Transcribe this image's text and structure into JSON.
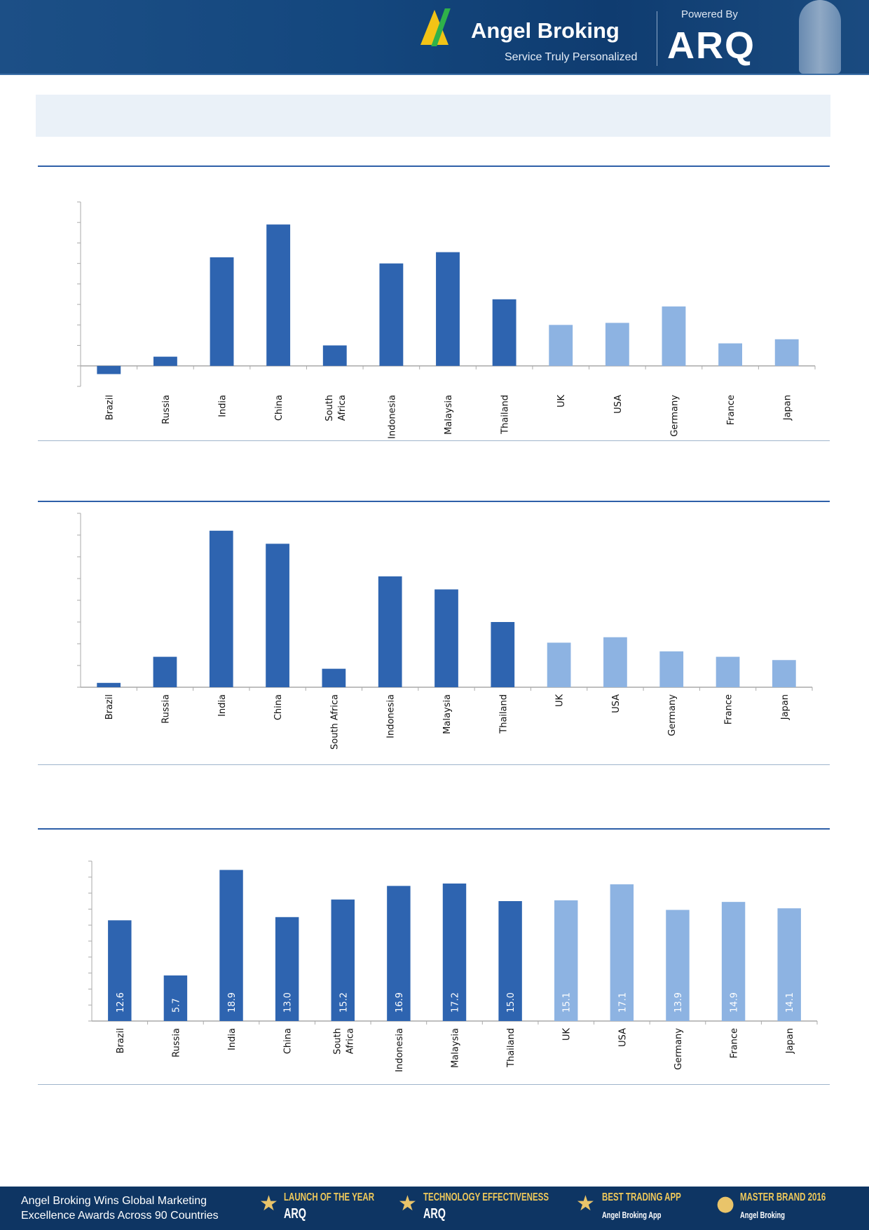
{
  "header": {
    "brand": "Angel Broking",
    "tagline": "Service Truly Personalized",
    "powered_by": "Powered By",
    "product": "ARQ"
  },
  "footer": {
    "text": "Angel Broking Wins Global Marketing\nExcellence Awards Across 90 Countries",
    "awards": [
      {
        "title": "LAUNCH OF THE YEAR",
        "sub": "ARQ"
      },
      {
        "title": "TECHNOLOGY EFFECTIVENESS",
        "sub": "ARQ"
      },
      {
        "title": "BEST TRADING APP",
        "sub": "Angel Broking App"
      },
      {
        "title": "MASTER BRAND 2016",
        "sub": "Angel Broking"
      }
    ]
  },
  "colors": {
    "em": "#2e64b0",
    "dm": "#8db3e2",
    "header_bg": "#14477e",
    "rule": "#2e5fa8"
  },
  "chart_data": [
    {
      "type": "bar",
      "categories": [
        "Brazil",
        "Russia",
        "India",
        "China",
        "South Africa",
        "Indonesia",
        "Malaysia",
        "Thailand",
        "UK",
        "USA",
        "Germany",
        "France",
        "Japan"
      ],
      "values": [
        -0.4,
        0.45,
        5.3,
        6.9,
        1.0,
        5.0,
        5.55,
        3.25,
        2.0,
        2.1,
        2.9,
        1.1,
        1.3
      ],
      "bar_colors": [
        "#2e64b0",
        "#2e64b0",
        "#2e64b0",
        "#2e64b0",
        "#2e64b0",
        "#2e64b0",
        "#2e64b0",
        "#2e64b0",
        "#8db3e2",
        "#8db3e2",
        "#8db3e2",
        "#8db3e2",
        "#8db3e2"
      ],
      "ylim": [
        -1,
        8
      ],
      "tick_step": 1,
      "data_labels": false,
      "grid": false
    },
    {
      "type": "bar",
      "categories": [
        "Brazil",
        "Russia",
        "India",
        "China",
        "South Africa",
        "Indonesia",
        "Malaysia",
        "Thailand",
        "UK",
        "USA",
        "Germany",
        "France",
        "Japan"
      ],
      "values": [
        0.2,
        1.4,
        7.2,
        6.6,
        0.85,
        5.1,
        4.5,
        3.0,
        2.05,
        2.3,
        1.65,
        1.4,
        1.25
      ],
      "bar_colors": [
        "#2e64b0",
        "#2e64b0",
        "#2e64b0",
        "#2e64b0",
        "#2e64b0",
        "#2e64b0",
        "#2e64b0",
        "#2e64b0",
        "#8db3e2",
        "#8db3e2",
        "#8db3e2",
        "#8db3e2",
        "#8db3e2"
      ],
      "ylim": [
        0,
        8
      ],
      "tick_step": 1,
      "data_labels": false,
      "grid": false
    },
    {
      "type": "bar",
      "categories": [
        "Brazil",
        "Russia",
        "India",
        "China",
        "South Africa",
        "Indonesia",
        "Malaysia",
        "Thailand",
        "UK",
        "USA",
        "Germany",
        "France",
        "Japan"
      ],
      "values": [
        12.6,
        5.7,
        18.9,
        13.0,
        15.2,
        16.9,
        17.2,
        15.0,
        15.1,
        17.1,
        13.9,
        14.9,
        14.1
      ],
      "labels": [
        "12.6",
        "5.7",
        "18.9",
        "13.0",
        "15.2",
        "16.9",
        "17.2",
        "15.0",
        "15.1",
        "17.1",
        "13.9",
        "14.9",
        "14.1"
      ],
      "bar_colors": [
        "#2e64b0",
        "#2e64b0",
        "#2e64b0",
        "#2e64b0",
        "#2e64b0",
        "#2e64b0",
        "#2e64b0",
        "#2e64b0",
        "#8db3e2",
        "#8db3e2",
        "#8db3e2",
        "#8db3e2",
        "#8db3e2"
      ],
      "ylim": [
        0,
        20
      ],
      "tick_step": 2,
      "data_labels": true,
      "grid": false
    }
  ]
}
